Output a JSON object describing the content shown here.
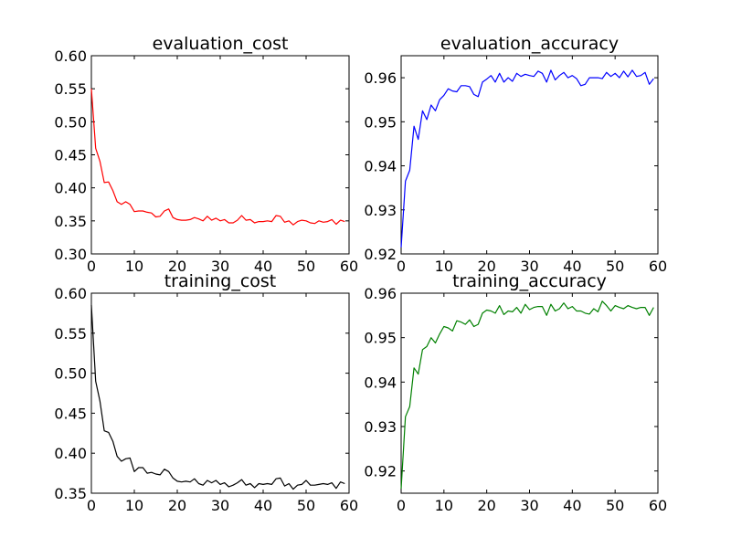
{
  "chart_data": [
    {
      "type": "line",
      "title": "evaluation_cost",
      "color": "#ff0000",
      "xlim": [
        0,
        60
      ],
      "ylim": [
        0.3,
        0.6
      ],
      "xticks": [
        "0",
        "10",
        "20",
        "30",
        "40",
        "50",
        "60"
      ],
      "yticks": [
        "0.30",
        "0.35",
        "0.40",
        "0.45",
        "0.50",
        "0.55",
        "0.60"
      ],
      "x": [
        0,
        1,
        2,
        3,
        4,
        5,
        6,
        7,
        8,
        9,
        10,
        11,
        12,
        13,
        14,
        15,
        16,
        17,
        18,
        19,
        20,
        21,
        22,
        23,
        24,
        25,
        26,
        27,
        28,
        29,
        30,
        31,
        32,
        33,
        34,
        35,
        36,
        37,
        38,
        39,
        40,
        41,
        42,
        43,
        44,
        45,
        46,
        47,
        48,
        49,
        50,
        51,
        52,
        53,
        54,
        55,
        56,
        57,
        58,
        59
      ],
      "y": [
        0.55,
        0.46,
        0.44,
        0.408,
        0.409,
        0.396,
        0.379,
        0.375,
        0.379,
        0.375,
        0.364,
        0.365,
        0.365,
        0.363,
        0.362,
        0.356,
        0.357,
        0.365,
        0.368,
        0.355,
        0.352,
        0.351,
        0.351,
        0.352,
        0.355,
        0.353,
        0.35,
        0.357,
        0.351,
        0.354,
        0.35,
        0.352,
        0.347,
        0.347,
        0.351,
        0.358,
        0.351,
        0.352,
        0.347,
        0.349,
        0.349,
        0.35,
        0.349,
        0.358,
        0.357,
        0.348,
        0.35,
        0.344,
        0.349,
        0.351,
        0.35,
        0.347,
        0.346,
        0.35,
        0.348,
        0.349,
        0.352,
        0.345,
        0.351,
        0.349
      ]
    },
    {
      "type": "line",
      "title": "evaluation_accuracy",
      "color": "#0000ff",
      "xlim": [
        0,
        60
      ],
      "ylim": [
        0.92,
        0.965
      ],
      "xticks": [
        "0",
        "10",
        "20",
        "30",
        "40",
        "50",
        "60"
      ],
      "yticks": [
        "0.92",
        "0.93",
        "0.94",
        "0.95",
        "0.96"
      ],
      "x": [
        0,
        1,
        2,
        3,
        4,
        5,
        6,
        7,
        8,
        9,
        10,
        11,
        12,
        13,
        14,
        15,
        16,
        17,
        18,
        19,
        20,
        21,
        22,
        23,
        24,
        25,
        26,
        27,
        28,
        29,
        30,
        31,
        32,
        33,
        34,
        35,
        36,
        37,
        38,
        39,
        40,
        41,
        42,
        43,
        44,
        45,
        46,
        47,
        48,
        49,
        50,
        51,
        52,
        53,
        54,
        55,
        56,
        57,
        58,
        59
      ],
      "y": [
        0.9215,
        0.9365,
        0.939,
        0.949,
        0.946,
        0.9525,
        0.9505,
        0.9538,
        0.9525,
        0.955,
        0.956,
        0.9575,
        0.957,
        0.9568,
        0.9582,
        0.9582,
        0.958,
        0.9562,
        0.9557,
        0.959,
        0.9597,
        0.9605,
        0.959,
        0.961,
        0.959,
        0.96,
        0.9592,
        0.961,
        0.9603,
        0.9608,
        0.9605,
        0.9603,
        0.9615,
        0.961,
        0.959,
        0.9617,
        0.9595,
        0.9605,
        0.9612,
        0.96,
        0.9605,
        0.9598,
        0.9582,
        0.9585,
        0.96,
        0.96,
        0.96,
        0.9598,
        0.9612,
        0.9603,
        0.961,
        0.96,
        0.9615,
        0.9602,
        0.9617,
        0.9603,
        0.9605,
        0.9612,
        0.9585,
        0.9598
      ]
    },
    {
      "type": "line",
      "title": "training_cost",
      "color": "#000000",
      "xlim": [
        0,
        60
      ],
      "ylim": [
        0.35,
        0.6
      ],
      "xticks": [
        "0",
        "10",
        "20",
        "30",
        "40",
        "50",
        "60"
      ],
      "yticks": [
        "0.35",
        "0.40",
        "0.45",
        "0.50",
        "0.55",
        "0.60"
      ],
      "x": [
        0,
        1,
        2,
        3,
        4,
        5,
        6,
        7,
        8,
        9,
        10,
        11,
        12,
        13,
        14,
        15,
        16,
        17,
        18,
        19,
        20,
        21,
        22,
        23,
        24,
        25,
        26,
        27,
        28,
        29,
        30,
        31,
        32,
        33,
        34,
        35,
        36,
        37,
        38,
        39,
        40,
        41,
        42,
        43,
        44,
        45,
        46,
        47,
        48,
        49,
        50,
        51,
        52,
        53,
        54,
        55,
        56,
        57,
        58,
        59
      ],
      "y": [
        0.585,
        0.49,
        0.465,
        0.428,
        0.426,
        0.415,
        0.396,
        0.39,
        0.393,
        0.394,
        0.377,
        0.382,
        0.382,
        0.375,
        0.376,
        0.374,
        0.373,
        0.38,
        0.377,
        0.369,
        0.365,
        0.364,
        0.365,
        0.364,
        0.368,
        0.362,
        0.36,
        0.366,
        0.363,
        0.366,
        0.361,
        0.363,
        0.358,
        0.36,
        0.363,
        0.367,
        0.36,
        0.362,
        0.357,
        0.362,
        0.361,
        0.362,
        0.361,
        0.368,
        0.369,
        0.359,
        0.362,
        0.355,
        0.36,
        0.361,
        0.366,
        0.36,
        0.36,
        0.361,
        0.362,
        0.361,
        0.363,
        0.356,
        0.364,
        0.362
      ]
    },
    {
      "type": "line",
      "title": "training_accuracy",
      "color": "#008000",
      "xlim": [
        0,
        60
      ],
      "ylim": [
        0.915,
        0.96
      ],
      "xticks": [
        "0",
        "10",
        "20",
        "30",
        "40",
        "50",
        "60"
      ],
      "yticks": [
        "0.92",
        "0.93",
        "0.94",
        "0.95",
        "0.96"
      ],
      "x": [
        0,
        1,
        2,
        3,
        4,
        5,
        6,
        7,
        8,
        9,
        10,
        11,
        12,
        13,
        14,
        15,
        16,
        17,
        18,
        19,
        20,
        21,
        22,
        23,
        24,
        25,
        26,
        27,
        28,
        29,
        30,
        31,
        32,
        33,
        34,
        35,
        36,
        37,
        38,
        39,
        40,
        41,
        42,
        43,
        44,
        45,
        46,
        47,
        48,
        49,
        50,
        51,
        52,
        53,
        54,
        55,
        56,
        57,
        58,
        59
      ],
      "y": [
        0.916,
        0.9322,
        0.9345,
        0.9432,
        0.9418,
        0.9473,
        0.948,
        0.95,
        0.9488,
        0.9508,
        0.9525,
        0.9522,
        0.9515,
        0.9538,
        0.9535,
        0.953,
        0.954,
        0.9525,
        0.953,
        0.9555,
        0.9562,
        0.956,
        0.9555,
        0.9572,
        0.9552,
        0.956,
        0.9558,
        0.9568,
        0.9555,
        0.9575,
        0.9563,
        0.9568,
        0.957,
        0.957,
        0.955,
        0.9575,
        0.956,
        0.9565,
        0.9578,
        0.9565,
        0.957,
        0.956,
        0.956,
        0.9555,
        0.9553,
        0.9565,
        0.9558,
        0.9582,
        0.9572,
        0.956,
        0.9572,
        0.9568,
        0.9565,
        0.9572,
        0.9568,
        0.9565,
        0.9568,
        0.9568,
        0.955,
        0.9568
      ]
    }
  ]
}
